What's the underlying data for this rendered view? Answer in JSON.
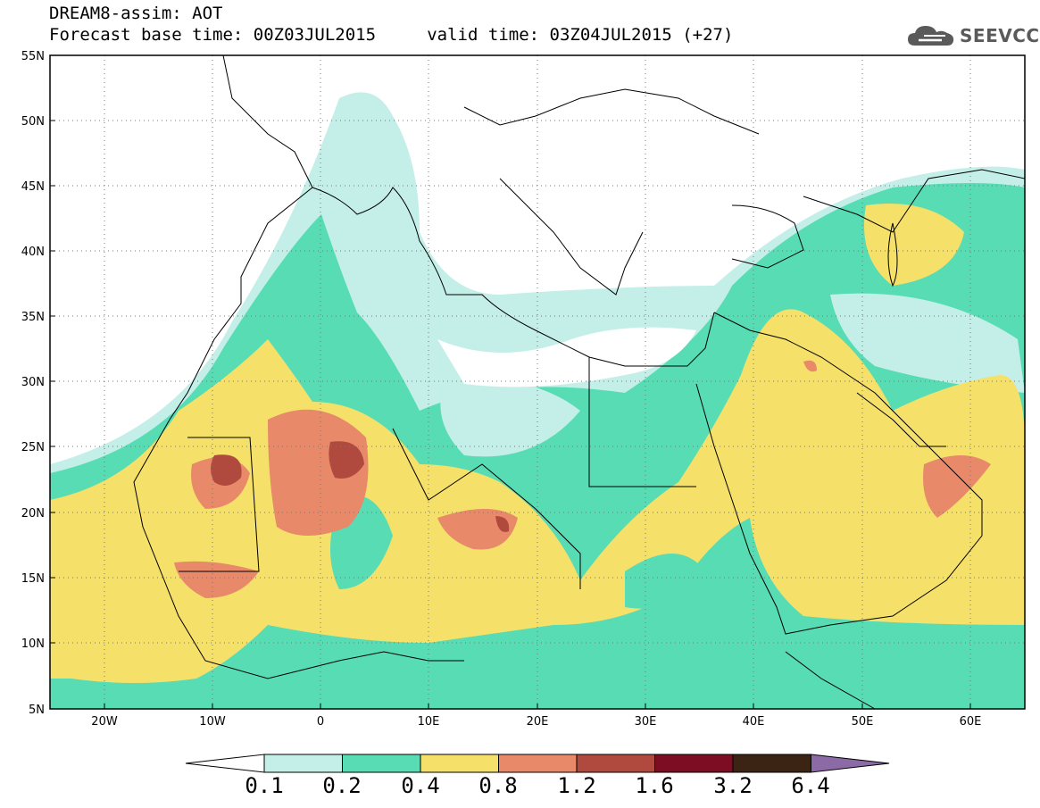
{
  "header": {
    "title_line1": "DREAM8-assim: AOT",
    "title_line2": "Forecast base time: 00Z03JUL2015     valid time: 03Z04JUL2015 (+27)"
  },
  "logo": {
    "text": "SEEVCCC",
    "icon": "cloud-icon"
  },
  "map": {
    "lat_labels": [
      "55N",
      "50N",
      "45N",
      "40N",
      "35N",
      "30N",
      "25N",
      "20N",
      "15N",
      "10N",
      "5N"
    ],
    "lon_labels": [
      "20W",
      "10W",
      "0",
      "10E",
      "20E",
      "30E",
      "40E",
      "50E",
      "60E"
    ],
    "field": "AOT",
    "region_lat": [
      5,
      55
    ],
    "region_lon": [
      -25,
      65
    ]
  },
  "colorbar": {
    "labels": [
      "0.1",
      "0.2",
      "0.4",
      "0.8",
      "1.2",
      "1.6",
      "3.2",
      "6.4"
    ],
    "colors": [
      "#ffffff",
      "#c4efe9",
      "#58dcb4",
      "#f5e06a",
      "#e8896a",
      "#b04a3e",
      "#7d0d22",
      "#3b2414",
      "#8b6aa6"
    ]
  }
}
